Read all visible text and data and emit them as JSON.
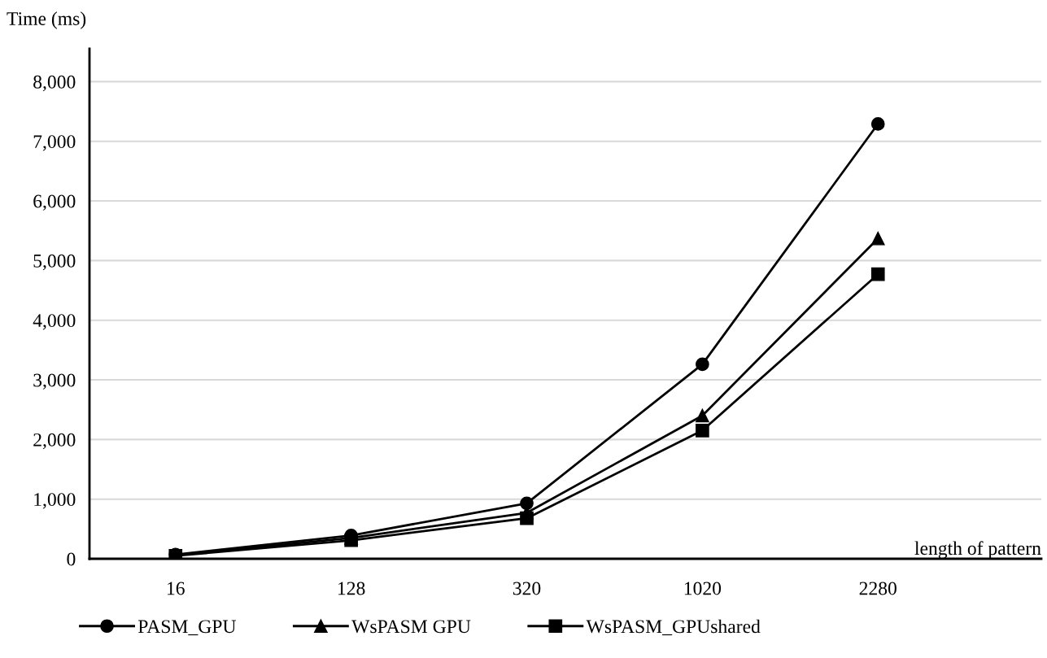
{
  "chart_data": {
    "type": "line",
    "ylabel": "Time (ms)",
    "xlabel": "length of pattern",
    "categories": [
      "16",
      "128",
      "320",
      "1020",
      "2280"
    ],
    "series": [
      {
        "name": "PASM_GPU",
        "color": "#000000",
        "marker": "circle",
        "values": [
          70,
          390,
          930,
          3260,
          7290
        ]
      },
      {
        "name": "WsPASM GPU",
        "color": "#000000",
        "marker": "triangle",
        "values": [
          60,
          350,
          770,
          2400,
          5370
        ]
      },
      {
        "name": "WsPASM_GPUshared",
        "color": "#000000",
        "marker": "square",
        "values": [
          50,
          310,
          680,
          2150,
          4770
        ]
      }
    ],
    "ylim": [
      0,
      8550
    ],
    "yticks": [
      {
        "value": 0,
        "label": "0"
      },
      {
        "value": 1000,
        "label": "1,000"
      },
      {
        "value": 2000,
        "label": "2,000"
      },
      {
        "value": 3000,
        "label": "3,000"
      },
      {
        "value": 4000,
        "label": "4,000"
      },
      {
        "value": 5000,
        "label": "5,000"
      },
      {
        "value": 6000,
        "label": "6,000"
      },
      {
        "value": 7000,
        "label": "7,000"
      },
      {
        "value": 8000,
        "label": "8,000"
      }
    ],
    "grid": "y",
    "legend": "bottom",
    "line_style": "solid"
  }
}
